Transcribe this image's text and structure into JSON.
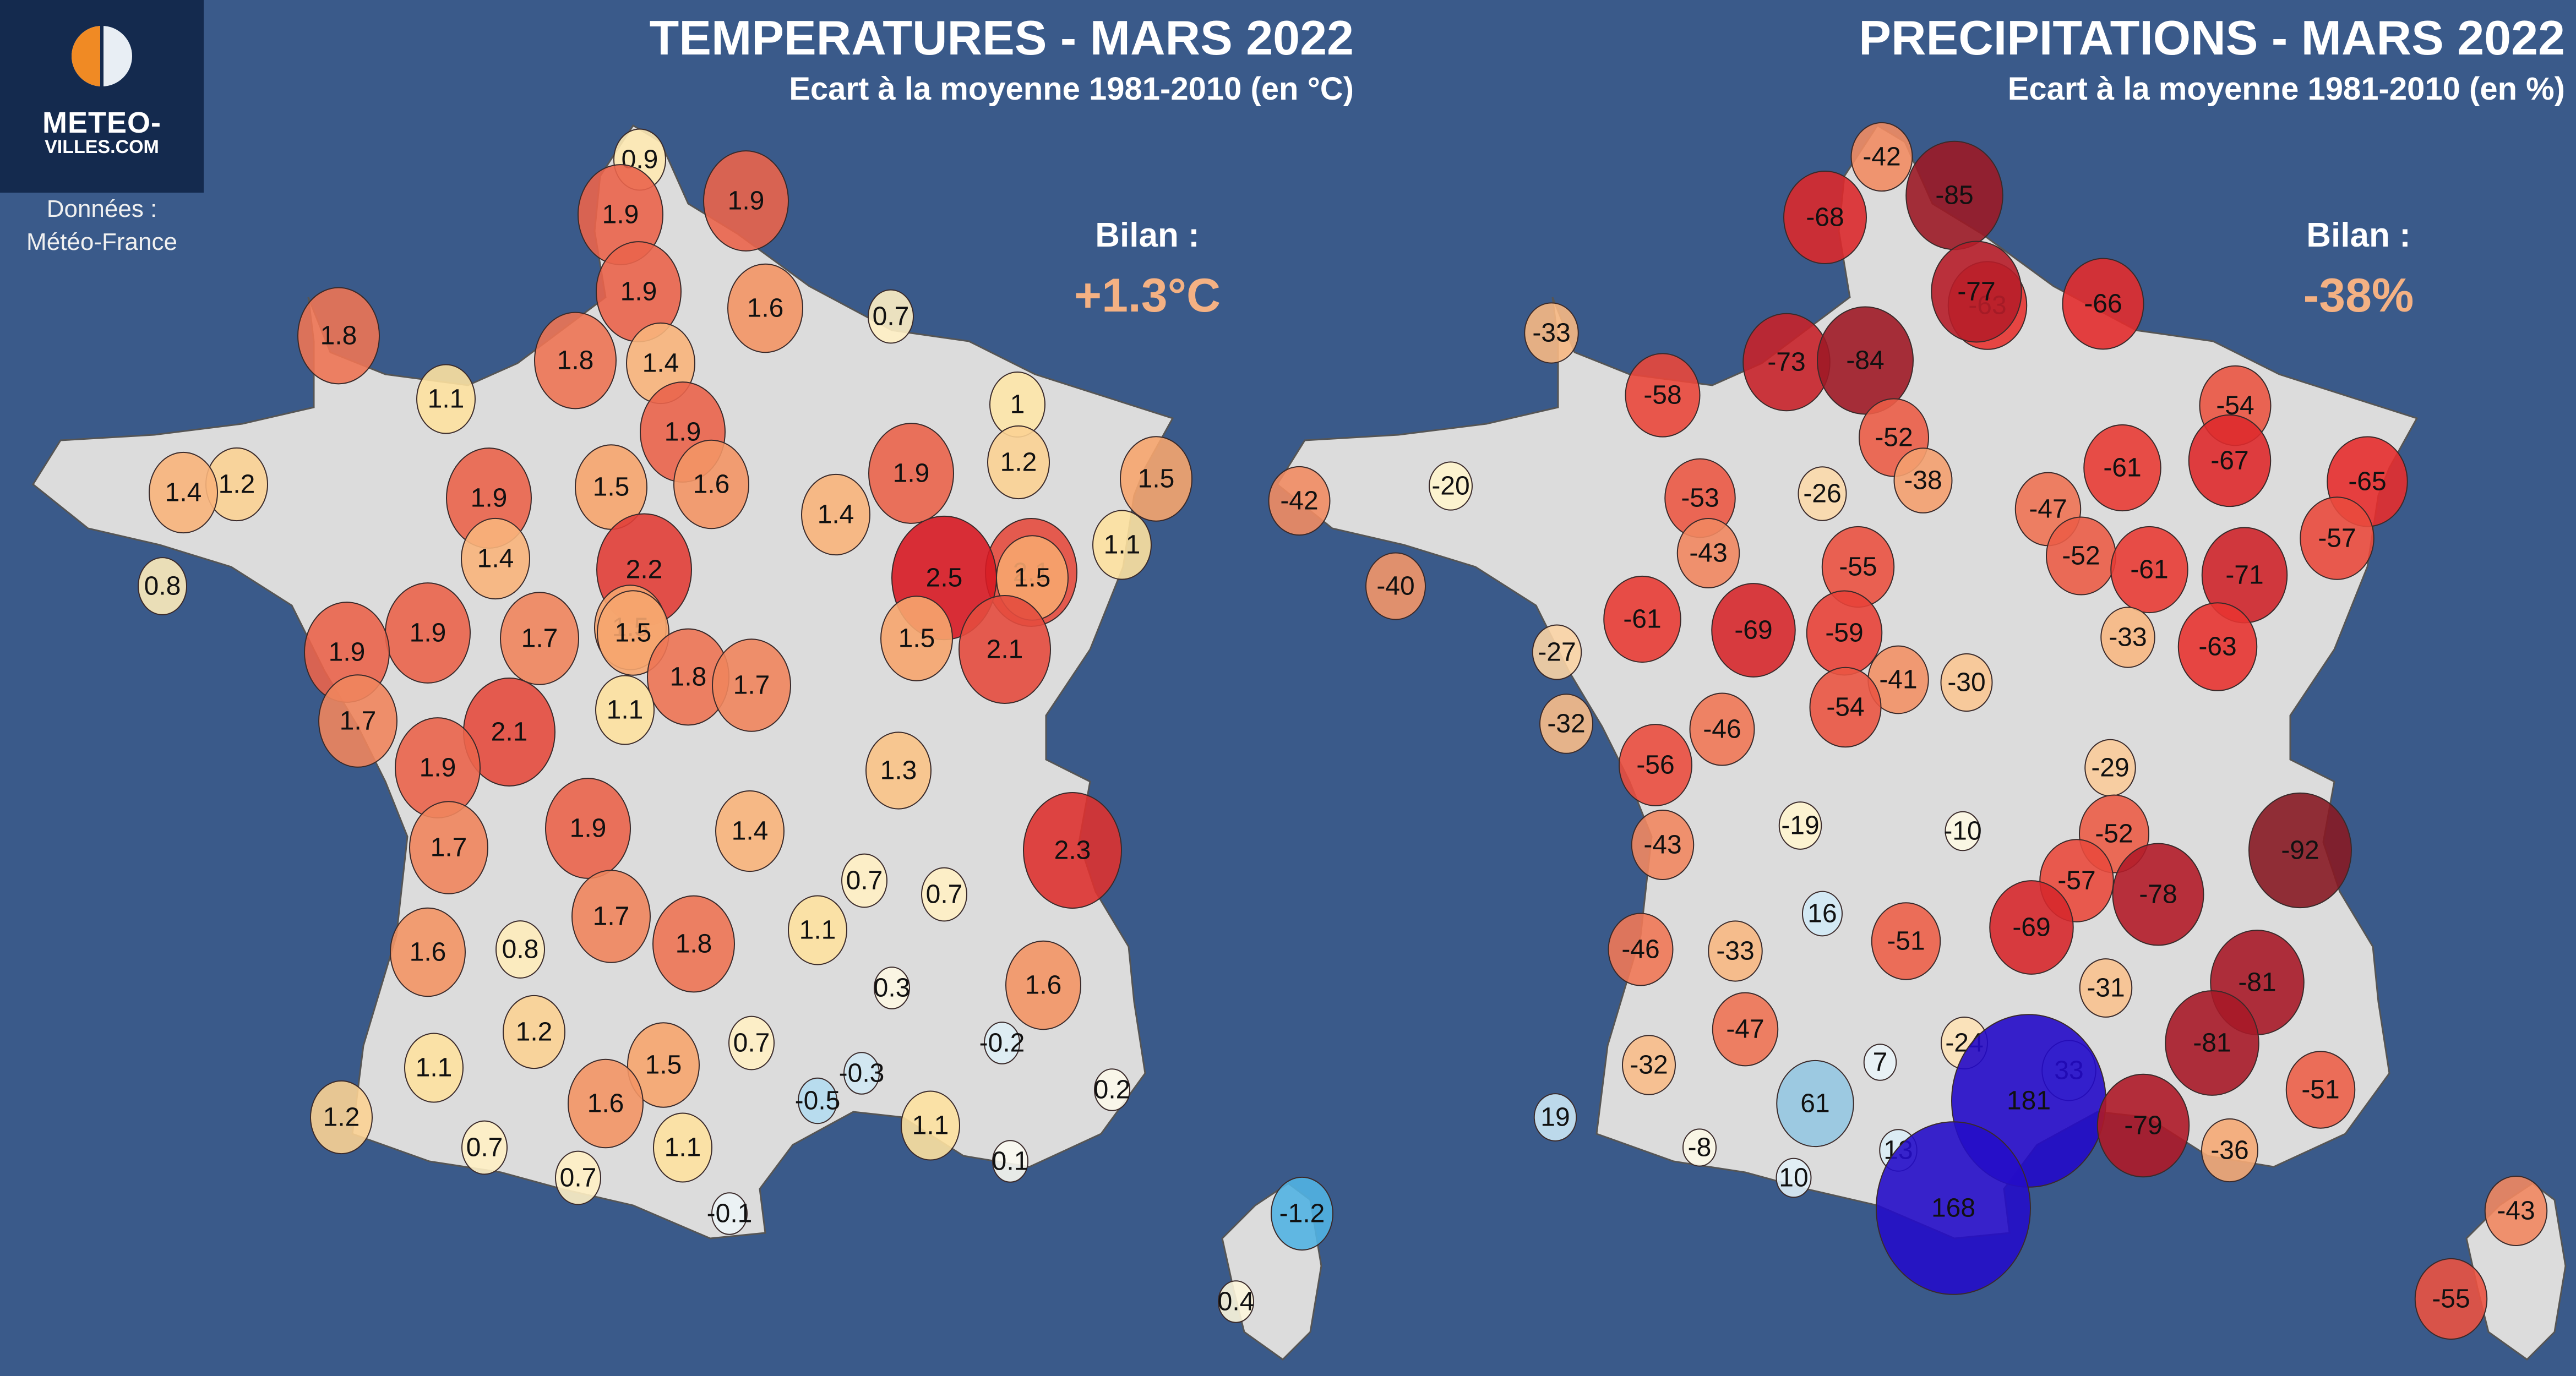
{
  "logo": {
    "line1": "METEO-",
    "line2": "VILLES.COM"
  },
  "source": {
    "line1": "Données :",
    "line2": "Météo-France"
  },
  "temperature_panel": {
    "title": "TEMPERATURES - MARS 2022",
    "subtitle": "Ecart à la moyenne 1981-2010 (en °C)",
    "bilan_label": "Bilan :",
    "bilan_value": "+1.3°C"
  },
  "precipitation_panel": {
    "title": "PRECIPITATIONS - MARS 2022",
    "subtitle": "Ecart à la moyenne 1981-2010 (en %)",
    "bilan_label": "Bilan :",
    "bilan_value": "-38%"
  },
  "colors": {
    "background": "#3a5a8a",
    "land": "#dcdcdc",
    "bilan": "#f4b183"
  },
  "temperature_values": [
    "0.9",
    "1.9",
    "1.9",
    "1.9",
    "1.6",
    "0.7",
    "1.8",
    "1.4",
    "1.8",
    "1.1",
    "1",
    "1.2",
    "1.9",
    "1.4",
    "1.5",
    "1.2",
    "1.6",
    "1.9",
    "1.5",
    "1.4",
    "1.4",
    "1.9",
    "1.1",
    "0.8",
    "1.4",
    "2.2",
    "2.1",
    "1.9",
    "1.7",
    "1.5",
    "2.5",
    "1.5",
    "1.9",
    "1.5",
    "1.5",
    "2.1",
    "1.7",
    "1.8",
    "1.7",
    "1.1",
    "2.1",
    "1.9",
    "1.7",
    "1.9",
    "1.4",
    "1.3",
    "2.3",
    "0.7",
    "0.7",
    "1.6",
    "0.8",
    "1.7",
    "1.8",
    "1.1",
    "1.6",
    "1.2",
    "0.3",
    "0.7",
    "1.5",
    "-0.2",
    "1.1",
    "-0.3",
    "1.6",
    "-0.5",
    "1.2",
    "0.2",
    "1.1",
    "1.1",
    "0.7",
    "0.7",
    "0.1",
    "-0.1",
    "-1.2",
    "0.4"
  ],
  "precipitation_values": [
    "-42",
    "-85",
    "-68",
    "-63",
    "-77",
    "-66",
    "-33",
    "-73",
    "-84",
    "-58",
    "-54",
    "-52",
    "-38",
    "-67",
    "-65",
    "-42",
    "-20",
    "-53",
    "-26",
    "-47",
    "-61",
    "-57",
    "-52",
    "-55",
    "-43",
    "-61",
    "-71",
    "-40",
    "-61",
    "-69",
    "-59",
    "-33",
    "-27",
    "-41",
    "-30",
    "-63",
    "-54",
    "-32",
    "-46",
    "-56",
    "-29",
    "-19",
    "-10",
    "-52",
    "-57",
    "-43",
    "-78",
    "-92",
    "16",
    "-69",
    "-46",
    "-33",
    "-51",
    "-81",
    "-47",
    "-31",
    "-24",
    "-32",
    "-81",
    "7",
    "33",
    "61",
    "181",
    "-51",
    "19",
    "-79",
    "13",
    "-8",
    "10",
    "-36",
    "168",
    "-43",
    "-55"
  ]
}
